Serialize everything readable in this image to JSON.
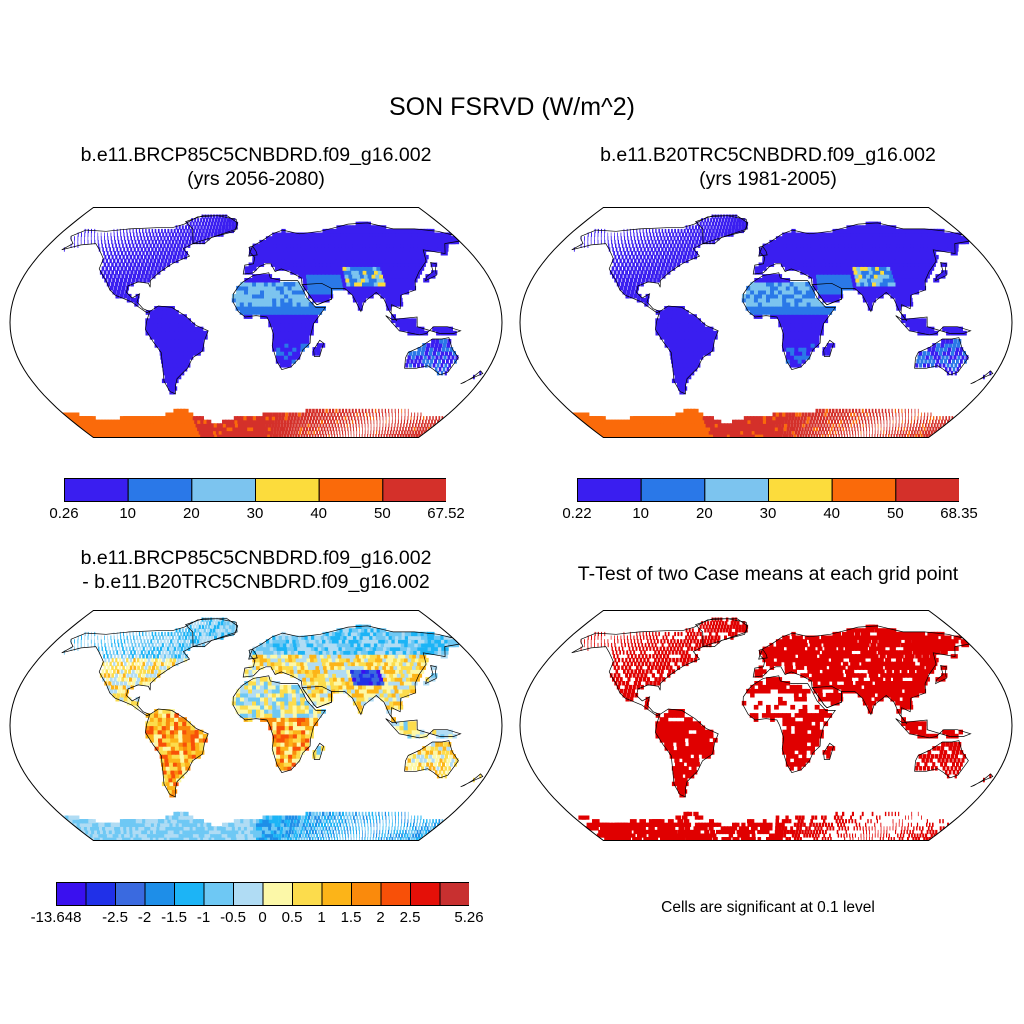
{
  "title": "SON FSRVD (W/m^2)",
  "panels": [
    {
      "line1": "b.e11.BRCP85C5CNBDRD.f09_g16.002",
      "line2": "(yrs 2056-2080)",
      "colorbar": {
        "colors": [
          "#3a1ef0",
          "#2a78e8",
          "#7cc4ef",
          "#fcdc3c",
          "#fa6a0a",
          "#d4302a"
        ],
        "labels": [
          "0.26",
          "10",
          "20",
          "30",
          "40",
          "50",
          "67.52"
        ]
      }
    },
    {
      "line1": "b.e11.B20TRC5CNBDRD.f09_g16.002",
      "line2": "(yrs 1981-2005)",
      "colorbar": {
        "colors": [
          "#3a1ef0",
          "#2a78e8",
          "#7cc4ef",
          "#fcdc3c",
          "#fa6a0a",
          "#d4302a"
        ],
        "labels": [
          "0.22",
          "10",
          "20",
          "30",
          "40",
          "50",
          "68.35"
        ]
      }
    },
    {
      "line1": "b.e11.BRCP85C5CNBDRD.f09_g16.002",
      "line2": "- b.e11.B20TRC5CNBDRD.f09_g16.002",
      "colorbar": {
        "colors": [
          "#3a10ef",
          "#2030e8",
          "#3a6ae0",
          "#1e8ee8",
          "#1cb4f6",
          "#6ec8f4",
          "#b0dcf4",
          "#fcf8a8",
          "#fcdc4c",
          "#fcb418",
          "#fa8a0c",
          "#f85008",
          "#e41008",
          "#c83030"
        ],
        "labels": [
          "-13.648",
          "-2.5",
          "-2",
          "-1.5",
          "-1",
          "-0.5",
          "0",
          "0.5",
          "1",
          "1.5",
          "2",
          "2.5",
          "5.26"
        ]
      }
    },
    {
      "line1": "",
      "line2": "T-Test of two Case means at each grid point",
      "note": "Cells are significant at 0.1 level"
    }
  ]
}
